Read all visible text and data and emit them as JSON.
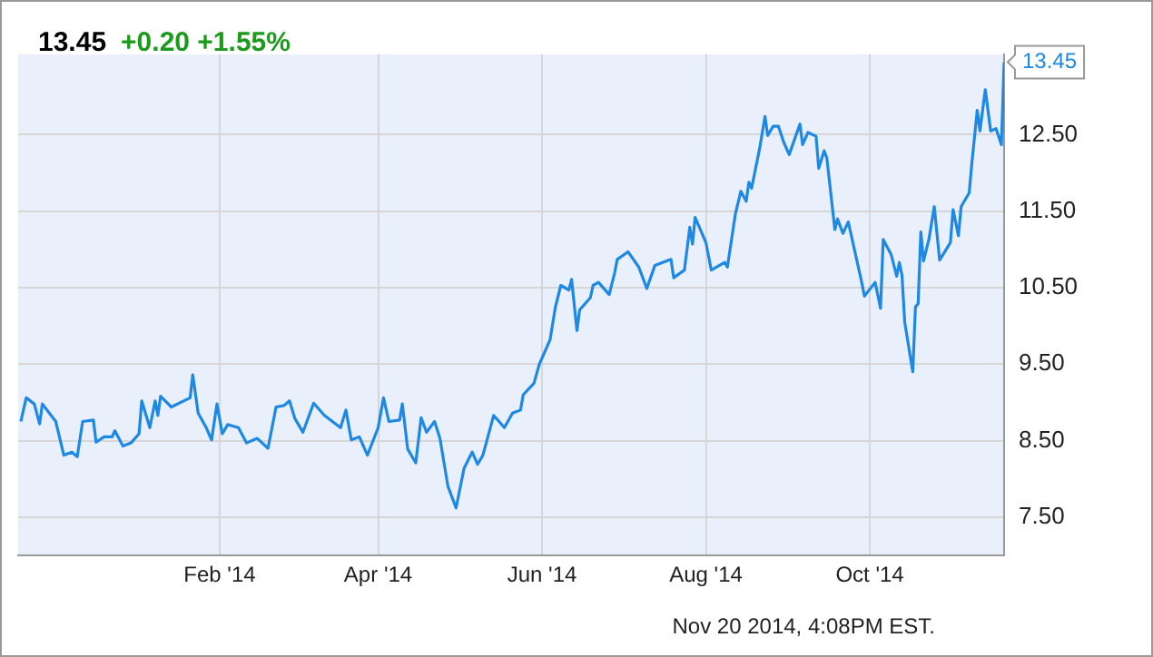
{
  "chart_data": {
    "type": "line",
    "title": "13.45",
    "subtitle": "+0.20  +1.55%",
    "annotations": [
      {
        "text": "13.45",
        "x": "2014-11-20",
        "y": 13.45
      },
      "Nov 20 2014, 4:08PM EST."
    ],
    "x": [
      "2013-11-19",
      "2013-11-21",
      "2013-11-24",
      "2013-11-26",
      "2013-11-27",
      "2013-12-02",
      "2013-12-05",
      "2013-12-08",
      "2013-12-10",
      "2013-12-12",
      "2013-12-16",
      "2013-12-17",
      "2013-12-20",
      "2013-12-23",
      "2013-12-24",
      "2013-12-27",
      "2013-12-30",
      "2014-01-02",
      "2014-01-03",
      "2014-01-06",
      "2014-01-08",
      "2014-01-09",
      "2014-01-10",
      "2014-01-14",
      "2014-01-21",
      "2014-01-22",
      "2014-01-24",
      "2014-01-27",
      "2014-01-29",
      "2014-01-31",
      "2014-02-02",
      "2014-02-04",
      "2014-02-08",
      "2014-02-11",
      "2014-02-15",
      "2014-02-19",
      "2014-02-22",
      "2014-02-25",
      "2014-02-27",
      "2014-03-01",
      "2014-03-04",
      "2014-03-08",
      "2014-03-12",
      "2014-03-18",
      "2014-03-20",
      "2014-03-22",
      "2014-03-25",
      "2014-03-28",
      "2014-04-01",
      "2014-04-03",
      "2014-04-05",
      "2014-04-09",
      "2014-04-10",
      "2014-04-12",
      "2014-04-15",
      "2014-04-17",
      "2014-04-19",
      "2014-04-22",
      "2014-04-24",
      "2014-04-27",
      "2014-04-30",
      "2014-05-03",
      "2014-05-06",
      "2014-05-08",
      "2014-05-10",
      "2014-05-14",
      "2014-05-18",
      "2014-05-21",
      "2014-05-24",
      "2014-05-25",
      "2014-05-29",
      "2014-05-31",
      "2014-06-04",
      "2014-06-06",
      "2014-06-08",
      "2014-06-11",
      "2014-06-12",
      "2014-06-14",
      "2014-06-15",
      "2014-06-19",
      "2014-06-20",
      "2014-06-22",
      "2014-06-26",
      "2014-06-28",
      "2014-06-29",
      "2014-07-03",
      "2014-07-07",
      "2014-07-10",
      "2014-07-13",
      "2014-07-19",
      "2014-07-20",
      "2014-07-24",
      "2014-07-26",
      "2014-07-27",
      "2014-07-28",
      "2014-08-01",
      "2014-08-03",
      "2014-08-08",
      "2014-08-09",
      "2014-08-12",
      "2014-08-14",
      "2014-08-16",
      "2014-08-17",
      "2014-08-18",
      "2014-08-21",
      "2014-08-23",
      "2014-08-24",
      "2014-08-26",
      "2014-08-28",
      "2014-08-30",
      "2014-09-01",
      "2014-09-05",
      "2014-09-06",
      "2014-09-08",
      "2014-09-11",
      "2014-09-12",
      "2014-09-14",
      "2014-09-15",
      "2014-09-18",
      "2014-09-19",
      "2014-09-21",
      "2014-09-23",
      "2014-09-28",
      "2014-09-29",
      "2014-10-03",
      "2014-10-05",
      "2014-10-06",
      "2014-10-09",
      "2014-10-11",
      "2014-10-12",
      "2014-10-13",
      "2014-10-14",
      "2014-10-17",
      "2014-10-18",
      "2014-10-19",
      "2014-10-20",
      "2014-10-21",
      "2014-10-23",
      "2014-10-25",
      "2014-10-27",
      "2014-10-31",
      "2014-11-01",
      "2014-11-03",
      "2014-11-04",
      "2014-11-07",
      "2014-11-08",
      "2014-11-10",
      "2014-11-11",
      "2014-11-13",
      "2014-11-15",
      "2014-11-17",
      "2014-11-19",
      "2014-11-20"
    ],
    "series": [
      {
        "color": "#1e88e5",
        "values": [
          8.75,
          9.06,
          8.98,
          8.72,
          8.98,
          8.75,
          8.31,
          8.35,
          8.29,
          8.75,
          8.77,
          8.48,
          8.55,
          8.55,
          8.63,
          8.43,
          8.47,
          8.59,
          9.02,
          8.67,
          9.02,
          8.83,
          9.08,
          8.94,
          9.06,
          9.36,
          8.86,
          8.67,
          8.51,
          8.98,
          8.59,
          8.71,
          8.67,
          8.47,
          8.53,
          8.4,
          8.94,
          8.96,
          9.02,
          8.79,
          8.61,
          8.99,
          8.83,
          8.67,
          8.9,
          8.51,
          8.55,
          8.31,
          8.67,
          9.06,
          8.75,
          8.77,
          8.98,
          8.39,
          8.21,
          8.8,
          8.61,
          8.75,
          8.53,
          7.9,
          7.62,
          8.14,
          8.35,
          8.19,
          8.31,
          8.83,
          8.67,
          8.86,
          8.9,
          9.1,
          9.25,
          9.5,
          9.82,
          10.25,
          10.53,
          10.47,
          10.61,
          9.94,
          10.21,
          10.37,
          10.53,
          10.57,
          10.41,
          10.69,
          10.87,
          10.97,
          10.77,
          10.49,
          10.79,
          10.87,
          10.63,
          10.73,
          11.29,
          11.07,
          11.42,
          11.09,
          10.73,
          10.83,
          10.77,
          11.47,
          11.76,
          11.63,
          11.88,
          11.8,
          12.32,
          12.74,
          12.49,
          12.61,
          12.61,
          12.4,
          12.24,
          12.64,
          12.37,
          12.53,
          12.48,
          12.06,
          12.29,
          12.2,
          11.26,
          11.4,
          11.21,
          11.36,
          10.57,
          10.39,
          10.57,
          10.23,
          11.13,
          10.93,
          10.65,
          10.83,
          10.66,
          10.05,
          9.4,
          10.25,
          10.29,
          11.23,
          10.85,
          11.13,
          11.56,
          10.86,
          11.09,
          11.52,
          11.18,
          11.56,
          11.74,
          12.13,
          12.82,
          12.55,
          13.09,
          12.55,
          12.58,
          12.37,
          13.45
        ]
      }
    ],
    "xlim": [
      "2013-11-18",
      "2014-11-20"
    ],
    "xticks": [
      {
        "value": "2014-02-01",
        "label": "Feb '14"
      },
      {
        "value": "2014-04-01",
        "label": "Apr '14"
      },
      {
        "value": "2014-06-01",
        "label": "Jun '14"
      },
      {
        "value": "2014-08-01",
        "label": "Aug '14"
      },
      {
        "value": "2014-10-01",
        "label": "Oct '14"
      }
    ],
    "ylim": [
      7.0,
      13.55
    ],
    "yticks": [
      {
        "value": 7.5,
        "label": "7.50"
      },
      {
        "value": 8.5,
        "label": "8.50"
      },
      {
        "value": 9.5,
        "label": "9.50"
      },
      {
        "value": 10.5,
        "label": "10.50"
      },
      {
        "value": 11.5,
        "label": "11.50"
      },
      {
        "value": 12.5,
        "label": "12.50"
      }
    ],
    "grid": true,
    "legend": false
  }
}
